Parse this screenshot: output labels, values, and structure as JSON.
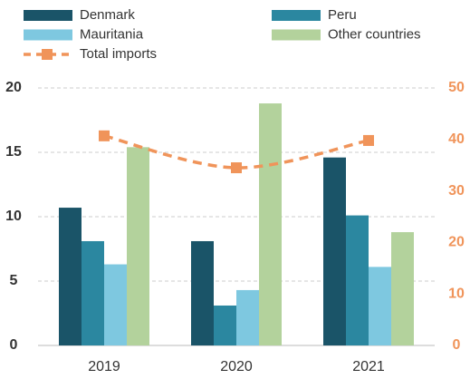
{
  "chart_data": {
    "type": "bar",
    "categories": [
      "2019",
      "2020",
      "2021"
    ],
    "series": [
      {
        "name": "Denmark",
        "color": "#1a5468",
        "values": [
          10.7,
          8.1,
          14.6
        ]
      },
      {
        "name": "Peru",
        "color": "#2b87a0",
        "values": [
          8.1,
          3.1,
          10.1
        ]
      },
      {
        "name": "Mauritania",
        "color": "#7ec8e0",
        "values": [
          6.3,
          4.3,
          6.1
        ]
      },
      {
        "name": "Other countries",
        "color": "#b3d29c",
        "values": [
          15.4,
          18.8,
          8.8
        ]
      },
      {
        "name": "Total imports",
        "color": "#f0945a",
        "type": "line",
        "axis": "y2",
        "values": [
          40.7,
          34.5,
          39.8
        ]
      }
    ],
    "ylim": [
      0,
      20
    ],
    "yticks": [
      0,
      5,
      10,
      15,
      20
    ],
    "y2lim": [
      0,
      50
    ],
    "y2ticks": [
      0,
      10,
      20,
      30,
      40,
      50
    ],
    "grid": true,
    "legend": "top"
  }
}
